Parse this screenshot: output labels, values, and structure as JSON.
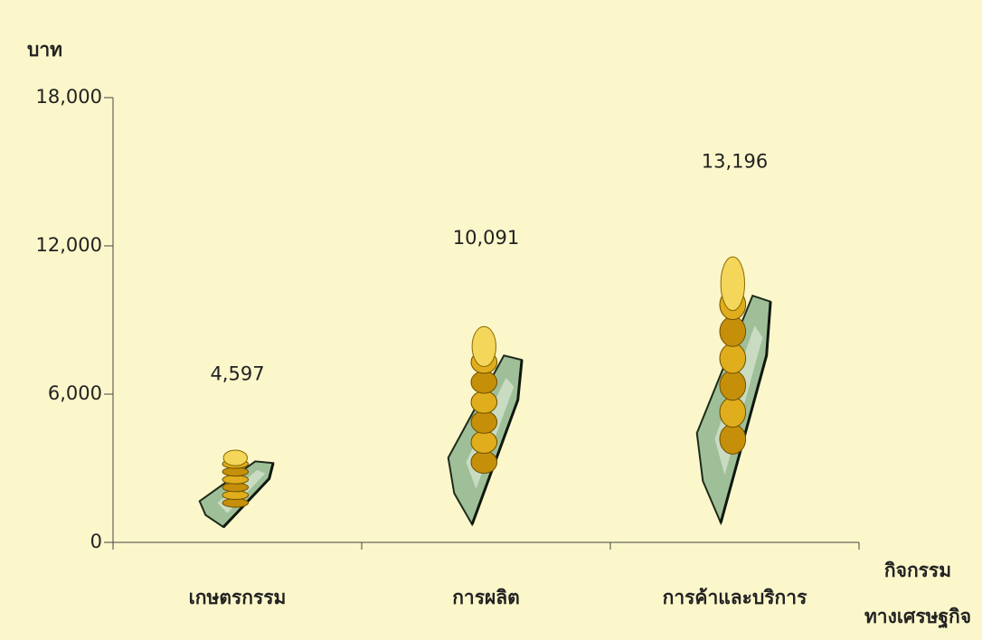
{
  "chart_data": {
    "type": "pictograph",
    "y_label": "บาท",
    "x_label": [
      "กิจกรรม",
      "ทางเศรษฐกิจ"
    ],
    "categories": [
      "เกษตรกรรม",
      "การผลิต",
      "การค้าและบริการ"
    ],
    "values": [
      4597,
      10091,
      13196
    ],
    "value_labels": [
      "4,597",
      "10,091",
      "13,196"
    ],
    "ylim": [
      0,
      18000
    ],
    "yticks": [
      0,
      {
        "value": 6000,
        "label": "6,000"
      },
      {
        "value": 12000,
        "label": "12,000"
      },
      {
        "value": 18000,
        "label": "18,000"
      }
    ],
    "background": "#fcf7cb"
  }
}
